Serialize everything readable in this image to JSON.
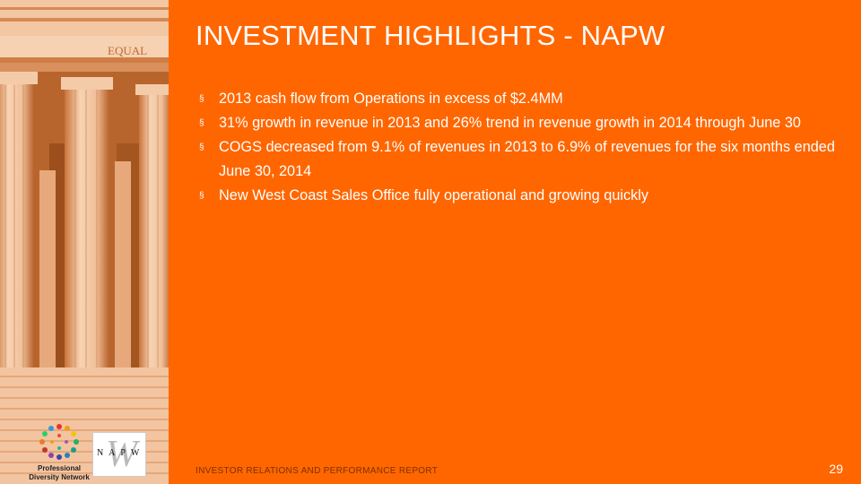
{
  "slide": {
    "title": "INVESTMENT HIGHLIGHTS - NAPW",
    "bullets": [
      "2013 cash flow from Operations in excess of $2.4MM",
      "31% growth in revenue in 2013 and  26% trend in revenue growth in 2014 through June 30",
      "COGS decreased from 9.1% of revenues in 2013 to 6.9% of revenues for the six months ended June 30, 2014",
      "New West Coast Sales Office fully operational and growing quickly"
    ],
    "bullet_marker": "§",
    "footer": "INVESTOR RELATIONS AND PERFORMANCE REPORT",
    "page_number": "29"
  },
  "image": {
    "frieze_text": "EQUAL"
  },
  "logos": {
    "pdn_caption_line1": "Professional",
    "pdn_caption_line2": "Diversity Network",
    "napw_wordmark": "N A P W"
  },
  "colors": {
    "background": "#ff6600",
    "text": "#ffffff",
    "footer_text": "#7a3200"
  }
}
